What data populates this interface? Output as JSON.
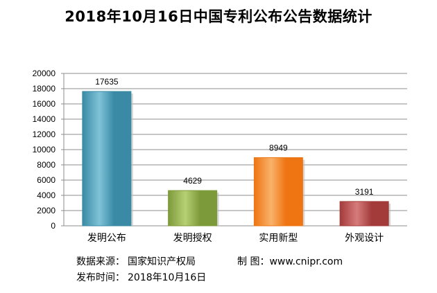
{
  "chart_data": {
    "type": "bar",
    "title": "2018年10月16日中国专利公布公告数据统计",
    "categories": [
      "发明公布",
      "发明授权",
      "实用新型",
      "外观设计"
    ],
    "values": [
      17635,
      4629,
      8949,
      3191
    ],
    "value_labels": [
      "17635",
      "4629",
      "8949",
      "3191"
    ],
    "ylim": [
      0,
      20000
    ],
    "y_ticks": [
      0,
      2000,
      4000,
      6000,
      8000,
      10000,
      12000,
      14000,
      16000,
      18000,
      20000
    ],
    "grid": true,
    "legend": "none",
    "bar_colors": [
      "#3a8aa5",
      "#7d9a3a",
      "#ee7512",
      "#a33b3b"
    ],
    "bar_highlights": [
      "#7fc3d8",
      "#b6cf74",
      "#f9b26a",
      "#d77b7b"
    ]
  },
  "footer": {
    "source_label": "数据来源：",
    "source_value": "国家知识产权局",
    "credit_label": "制  图：",
    "credit_value": "www.cnipr.com",
    "date_label": "发布时间：",
    "date_value": "2018年10月16日"
  }
}
